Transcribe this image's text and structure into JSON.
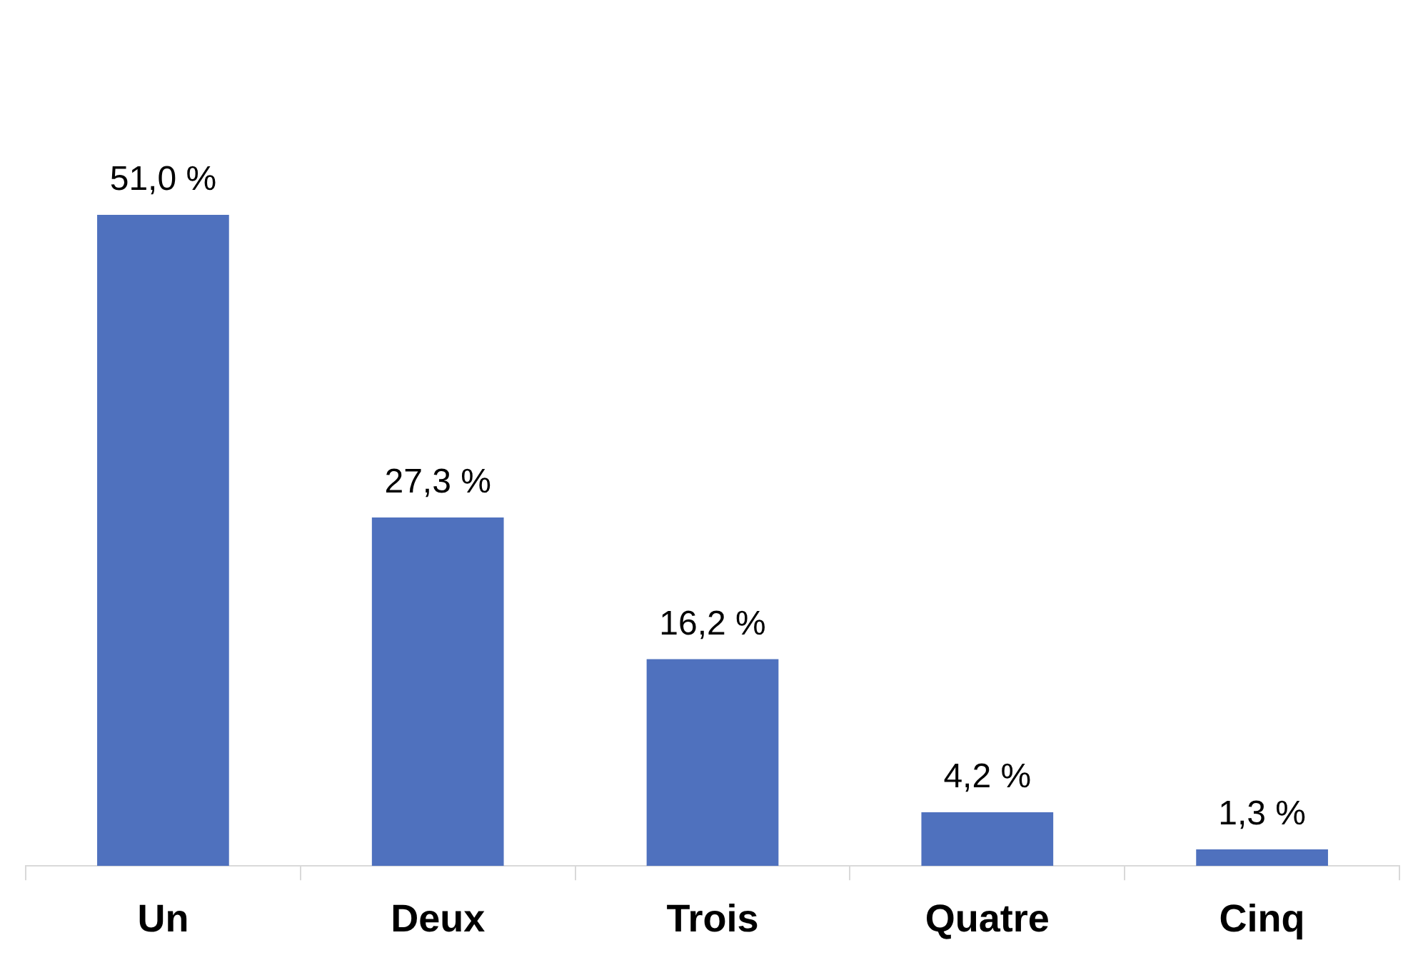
{
  "chart_data": {
    "type": "bar",
    "categories": [
      "Un",
      "Deux",
      "Trois",
      "Quatre",
      "Cinq"
    ],
    "values": [
      51.0,
      27.3,
      16.2,
      4.2,
      1.3
    ],
    "value_labels": [
      "51,0 %",
      "27,3 %",
      "16,2 %",
      "4,2 %",
      "1,3 %"
    ],
    "color": "#4f71be",
    "grid": false,
    "legend": false
  }
}
